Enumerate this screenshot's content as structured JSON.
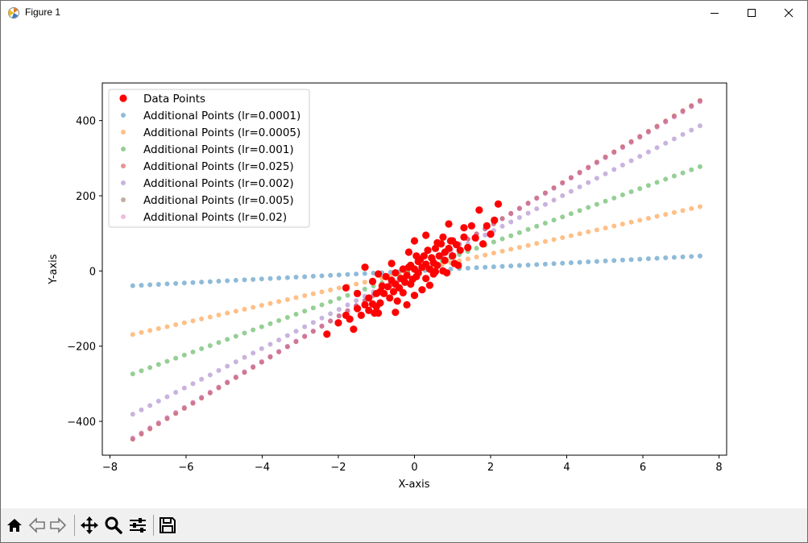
{
  "window": {
    "title": "Figure 1",
    "buttons": [
      "minimize",
      "maximize",
      "close"
    ]
  },
  "toolbar": {
    "items": [
      {
        "name": "home",
        "icon": "home-icon"
      },
      {
        "name": "back",
        "icon": "arrow-left-icon"
      },
      {
        "name": "forward",
        "icon": "arrow-right-icon"
      },
      {
        "name": "pan",
        "icon": "move-icon"
      },
      {
        "name": "zoom",
        "icon": "zoom-icon"
      },
      {
        "name": "configure-subplots",
        "icon": "sliders-icon"
      },
      {
        "name": "save",
        "icon": "save-icon"
      }
    ]
  },
  "chart_data": {
    "type": "scatter",
    "title": "",
    "xlabel": "X-axis",
    "ylabel": "Y-axis",
    "xlim": [
      -8.2,
      8.2
    ],
    "ylim": [
      -490,
      500
    ],
    "xticks": [
      -8,
      -6,
      -4,
      -2,
      0,
      2,
      4,
      6,
      8
    ],
    "yticks": [
      -400,
      -200,
      0,
      200,
      400
    ],
    "xtick_labels": [
      "−8",
      "−6",
      "−4",
      "−2",
      "0",
      "2",
      "4",
      "6",
      "8"
    ],
    "ytick_labels": [
      "−400",
      "−200",
      "0",
      "200",
      "400"
    ],
    "grid": false,
    "legend_position": "top-left",
    "line_series": {
      "x_start": -7.4,
      "x_end": 7.5,
      "n_points": 67,
      "series": [
        {
          "name": "Additional Points (lr=0.0001)",
          "slope": 5.3,
          "color": "#1f77b4"
        },
        {
          "name": "Additional Points (lr=0.0005)",
          "slope": 22.8,
          "color": "#ff7f0e"
        },
        {
          "name": "Additional Points (lr=0.001)",
          "slope": 37.0,
          "color": "#2ca02c"
        },
        {
          "name": "Additional Points (lr=0.025)",
          "slope": 60.5,
          "color": "#d62728"
        },
        {
          "name": "Additional Points (lr=0.002)",
          "slope": 51.5,
          "color": "#9467bd"
        },
        {
          "name": "Additional Points (lr=0.005)",
          "slope": 60.2,
          "color": "#8c564b"
        },
        {
          "name": "Additional Points (lr=0.02)",
          "slope": 60.0,
          "color": "#e377c2"
        }
      ]
    },
    "data_points": {
      "name": "Data Points",
      "color": "#ff0000",
      "points": [
        [
          -2.3,
          -168
        ],
        [
          -2.0,
          -138
        ],
        [
          -1.8,
          -118
        ],
        [
          -1.7,
          -128
        ],
        [
          -1.6,
          -155
        ],
        [
          -1.5,
          -100
        ],
        [
          -1.5,
          -60
        ],
        [
          -1.4,
          -118
        ],
        [
          -1.3,
          -90
        ],
        [
          -1.2,
          -72
        ],
        [
          -1.2,
          -105
        ],
        [
          -1.1,
          -28
        ],
        [
          -1.1,
          -88
        ],
        [
          -1.05,
          -112
        ],
        [
          -1.0,
          -60
        ],
        [
          -1.0,
          -95
        ],
        [
          -0.95,
          -112
        ],
        [
          -0.9,
          -85
        ],
        [
          -0.9,
          -55
        ],
        [
          -0.85,
          -40
        ],
        [
          -0.8,
          -60
        ],
        [
          -0.75,
          -15
        ],
        [
          -0.7,
          -42
        ],
        [
          -0.65,
          -72
        ],
        [
          -0.6,
          -25
        ],
        [
          -0.55,
          -55
        ],
        [
          -0.5,
          -35
        ],
        [
          -0.5,
          -5
        ],
        [
          -0.45,
          -80
        ],
        [
          -0.4,
          -45
        ],
        [
          -0.35,
          -20
        ],
        [
          -0.3,
          5
        ],
        [
          -0.3,
          -58
        ],
        [
          -0.25,
          -30
        ],
        [
          -0.2,
          -90
        ],
        [
          -0.2,
          -12
        ],
        [
          -0.15,
          10
        ],
        [
          -0.1,
          -35
        ],
        [
          -0.1,
          15
        ],
        [
          -0.05,
          -22
        ],
        [
          0.0,
          -65
        ],
        [
          0.0,
          5
        ],
        [
          0.05,
          40
        ],
        [
          0.05,
          -15
        ],
        [
          0.1,
          25
        ],
        [
          0.1,
          -5
        ],
        [
          0.15,
          30
        ],
        [
          0.2,
          10
        ],
        [
          0.25,
          40
        ],
        [
          0.3,
          -20
        ],
        [
          0.3,
          18
        ],
        [
          0.35,
          55
        ],
        [
          0.4,
          5
        ],
        [
          0.45,
          35
        ],
        [
          0.5,
          -8
        ],
        [
          0.5,
          22
        ],
        [
          0.55,
          60
        ],
        [
          0.6,
          15
        ],
        [
          0.65,
          40
        ],
        [
          0.7,
          72
        ],
        [
          0.75,
          0
        ],
        [
          0.8,
          50
        ],
        [
          0.8,
          28
        ],
        [
          0.85,
          -5
        ],
        [
          0.9,
          60
        ],
        [
          0.95,
          80
        ],
        [
          1.0,
          40
        ],
        [
          1.05,
          20
        ],
        [
          1.1,
          70
        ],
        [
          1.15,
          15
        ],
        [
          1.2,
          55
        ],
        [
          1.3,
          90
        ],
        [
          1.4,
          62
        ],
        [
          1.5,
          120
        ],
        [
          1.6,
          88
        ],
        [
          1.7,
          162
        ],
        [
          1.8,
          72
        ],
        [
          1.9,
          120
        ],
        [
          2.0,
          98
        ],
        [
          2.1,
          135
        ],
        [
          2.2,
          178
        ],
        [
          -1.8,
          -45
        ],
        [
          -1.3,
          10
        ],
        [
          -0.6,
          20
        ],
        [
          0.0,
          80
        ],
        [
          0.3,
          95
        ],
        [
          0.4,
          -38
        ],
        [
          0.9,
          125
        ],
        [
          1.3,
          115
        ],
        [
          0.6,
          75
        ],
        [
          0.75,
          90
        ],
        [
          -0.5,
          -110
        ],
        [
          -0.95,
          -8
        ],
        [
          0.2,
          -50
        ],
        [
          1.0,
          80
        ],
        [
          0.55,
          -2
        ],
        [
          -0.15,
          50
        ]
      ]
    },
    "x": [
      -7.4,
      7.5
    ],
    "series": [
      {
        "name": "Additional Points (lr=0.0001)",
        "values": [
          -39,
          40
        ]
      },
      {
        "name": "Additional Points (lr=0.0005)",
        "values": [
          -169,
          171
        ]
      },
      {
        "name": "Additional Points (lr=0.001)",
        "values": [
          -274,
          278
        ]
      },
      {
        "name": "Additional Points (lr=0.025)",
        "values": [
          -448,
          454
        ]
      },
      {
        "name": "Additional Points (lr=0.002)",
        "values": [
          -381,
          386
        ]
      },
      {
        "name": "Additional Points (lr=0.005)",
        "values": [
          -445,
          452
        ]
      },
      {
        "name": "Additional Points (lr=0.02)",
        "values": [
          -444,
          450
        ]
      }
    ]
  }
}
